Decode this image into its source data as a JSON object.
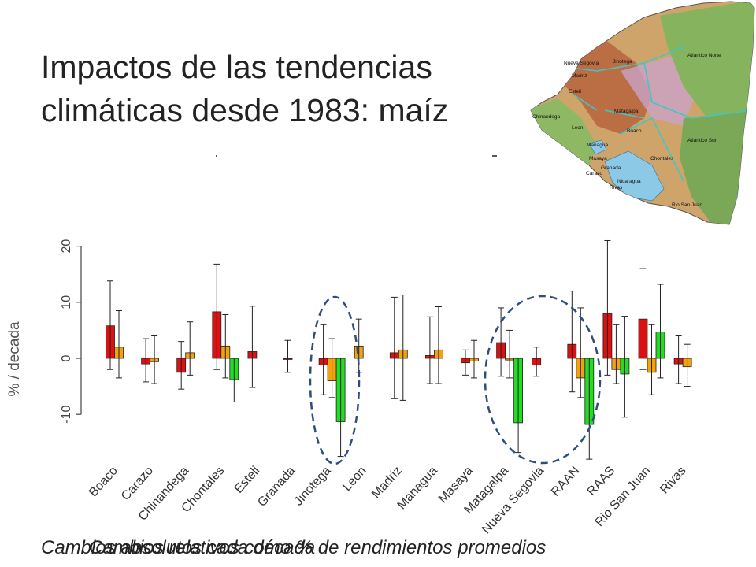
{
  "slide": {
    "title_line1": "Impactos de las tendencias",
    "title_line2": "climáticas desde 1983: maíz",
    "caption_1": "Cambios absolutos cada década",
    "caption_2": "Cambios relativos como % de rendimientos promedios"
  },
  "map": {
    "region_labels": [
      "Nueva Segovia",
      "Madriz",
      "Jinotega",
      "Atlantico Norte",
      "Esteli",
      "Chinandega",
      "Matagalpa",
      "Leon",
      "Boaco",
      "Managua",
      "Masaya",
      "Atlantico Sur",
      "Chontales",
      "Granada",
      "Carazo",
      "Nicaragua",
      "Rivas",
      "Rio San Juan"
    ],
    "colors": {
      "land": "#cfa46a",
      "highland": "#b05a3c",
      "forest": "#7fae5a",
      "lake": "#8cc9e6",
      "border": "#3ec7c7"
    }
  },
  "chart_data": {
    "type": "bar",
    "ylabel": "% / decada",
    "ylim": [
      -14,
      22
    ],
    "yticks": [
      -10,
      0,
      10,
      20
    ],
    "categories": [
      "Boaco",
      "Carazo",
      "Chinandega",
      "Chontales",
      "Esteli",
      "Granada",
      "Jinotega",
      "Leon",
      "Madriz",
      "Managua",
      "Masaya",
      "Matagalpa",
      "Nueva Segovia",
      "RAAN",
      "RAAS",
      "Rio San Juan",
      "Rivas"
    ],
    "series_colors": [
      "#dd1111",
      "#f2a20c",
      "#22dd22"
    ],
    "series": [
      {
        "values": [
          5.8,
          -1.0,
          -2.5,
          8.3,
          1.2,
          -0.2,
          -1.2,
          null,
          1.0,
          0.5,
          -0.8,
          2.8,
          -1.2,
          2.5,
          8.0,
          7.0,
          -1.0
        ],
        "err_low": [
          -2.0,
          -4.2,
          -5.5,
          -2.0,
          -5.2,
          -2.5,
          -6.5,
          null,
          -7.2,
          -4.5,
          -3.0,
          -3.2,
          -3.2,
          -6.0,
          -3.0,
          -2.0,
          -4.5
        ],
        "err_high": [
          13.8,
          3.5,
          3.0,
          16.8,
          9.3,
          3.2,
          6.0,
          null,
          10.9,
          7.4,
          1.5,
          9.0,
          2.0,
          12.0,
          21.0,
          16.0,
          4.0
        ]
      },
      {
        "values": [
          2.0,
          -0.6,
          1.0,
          2.2,
          null,
          null,
          -4.0,
          2.2,
          1.5,
          1.5,
          -0.5,
          -0.3,
          null,
          -3.5,
          -2.0,
          -2.5,
          -1.5
        ],
        "err_low": [
          -3.5,
          -4.5,
          -3.0,
          -3.5,
          null,
          null,
          -7.0,
          -2.5,
          -7.5,
          -4.5,
          -3.5,
          -3.5,
          null,
          -7.0,
          -4.5,
          -6.5,
          -5.0
        ],
        "err_high": [
          8.5,
          4.0,
          6.5,
          7.8,
          null,
          null,
          3.5,
          7.0,
          11.3,
          9.2,
          3.2,
          5.0,
          null,
          9.0,
          6.0,
          6.0,
          2.5
        ],
        "yellow_only_index": [
          7
        ]
      },
      {
        "values": [
          null,
          null,
          null,
          -3.8,
          null,
          null,
          -11.3,
          null,
          null,
          null,
          null,
          -11.5,
          null,
          -11.8,
          -2.8,
          4.7,
          null
        ],
        "err_low": [
          null,
          null,
          null,
          -7.8,
          null,
          null,
          -17.5,
          null,
          null,
          null,
          null,
          -16.8,
          null,
          -18.0,
          -10.5,
          -3.5,
          null
        ],
        "err_high": [
          null,
          null,
          null,
          0.0,
          null,
          null,
          0.0,
          null,
          null,
          null,
          null,
          0.0,
          null,
          0.0,
          7.5,
          13.2,
          null
        ]
      }
    ]
  }
}
